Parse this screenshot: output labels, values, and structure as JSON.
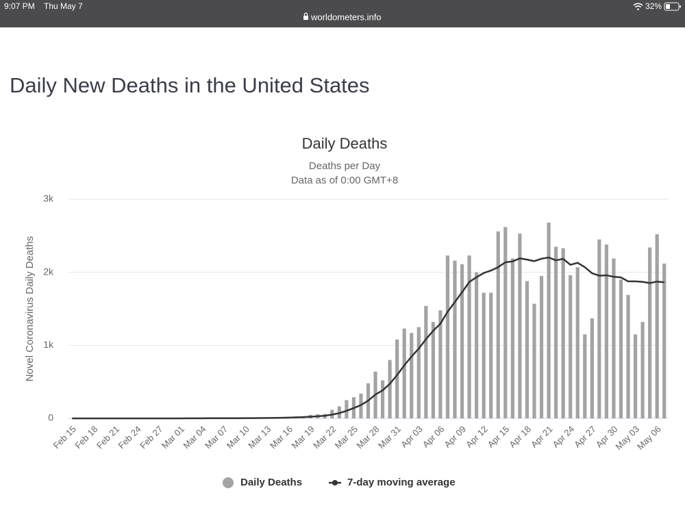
{
  "status_bar": {
    "time": "9:07 PM",
    "date": "Thu May 7",
    "url": "worldometers.info",
    "battery": "32%"
  },
  "page": {
    "title": "Daily New Deaths in the United States"
  },
  "chart_data": {
    "type": "bar",
    "title": "Daily Deaths",
    "subtitle": [
      "Deaths per Day",
      "Data as of 0:00 GMT+8"
    ],
    "y_label": "Novel Coronavirus Daily Deaths",
    "categories": [
      "Feb 15",
      null,
      null,
      "Feb 18",
      null,
      null,
      "Feb 21",
      null,
      null,
      "Feb 24",
      null,
      null,
      "Feb 27",
      null,
      null,
      "Mar 01",
      null,
      null,
      "Mar 04",
      null,
      null,
      "Mar 07",
      null,
      null,
      "Mar 10",
      null,
      null,
      "Mar 13",
      null,
      null,
      "Mar 16",
      null,
      null,
      "Mar 19",
      null,
      null,
      "Mar 22",
      null,
      null,
      "Mar 25",
      null,
      null,
      "Mar 28",
      null,
      null,
      "Mar 31",
      null,
      null,
      "Apr 03",
      null,
      null,
      "Apr 06",
      null,
      null,
      "Apr 09",
      null,
      null,
      "Apr 12",
      null,
      null,
      "Apr 15",
      null,
      null,
      "Apr 18",
      null,
      null,
      "Apr 21",
      null,
      null,
      "Apr 24",
      null,
      null,
      "Apr 27",
      null,
      null,
      "Apr 30",
      null,
      null,
      "May 03",
      null,
      null,
      "May 06",
      null
    ],
    "series": [
      {
        "name": "Daily Deaths",
        "type": "bar",
        "color": "#a3a3a3",
        "values": [
          0,
          0,
          0,
          0,
          0,
          0,
          0,
          0,
          0,
          0,
          0,
          0,
          0,
          0,
          1,
          1,
          5,
          1,
          4,
          1,
          2,
          3,
          4,
          4,
          3,
          7,
          9,
          10,
          10,
          12,
          23,
          26,
          30,
          48,
          57,
          61,
          117,
          165,
          250,
          290,
          340,
          480,
          640,
          520,
          800,
          1080,
          1230,
          1170,
          1250,
          1540,
          1320,
          1480,
          2230,
          2160,
          2110,
          2230,
          2000,
          1720,
          1720,
          2560,
          2620,
          2190,
          2530,
          1880,
          1570,
          1950,
          2680,
          2350,
          2330,
          1960,
          2070,
          1150,
          1370,
          2450,
          2380,
          2190,
          1900,
          1690,
          1150,
          1320,
          2340,
          2520,
          2120
        ]
      },
      {
        "name": "7-day moving average",
        "type": "line",
        "color": "#333333",
        "values": [
          0,
          0,
          0,
          0,
          0,
          0,
          0,
          0,
          0,
          0,
          0,
          0,
          0,
          0,
          0.1,
          0.3,
          1,
          1.1,
          1.7,
          1.9,
          2.1,
          2.4,
          2.9,
          2.7,
          3,
          3.4,
          4.6,
          5.7,
          6.7,
          7.9,
          10.6,
          13.9,
          17.1,
          22.7,
          29.4,
          36.7,
          51.7,
          72,
          104,
          141,
          183,
          243,
          326,
          384,
          474,
          593,
          727,
          846,
          956,
          1084,
          1199,
          1296,
          1460,
          1593,
          1727,
          1867,
          1933,
          1990,
          2024,
          2071,
          2137,
          2149,
          2191,
          2174,
          2153,
          2186,
          2203,
          2164,
          2184,
          2103,
          2130,
          2070,
          1987,
          1954,
          1959,
          1939,
          1930,
          1876,
          1876,
          1869,
          1853,
          1873,
          1863
        ]
      }
    ],
    "ylim": [
      0,
      3000
    ],
    "yticks": [
      0,
      {
        "value": 1000,
        "label": "1k"
      },
      {
        "value": 2000,
        "label": "2k"
      },
      {
        "value": 3000,
        "label": "3k"
      }
    ],
    "grid": true,
    "legend": "bottom"
  }
}
